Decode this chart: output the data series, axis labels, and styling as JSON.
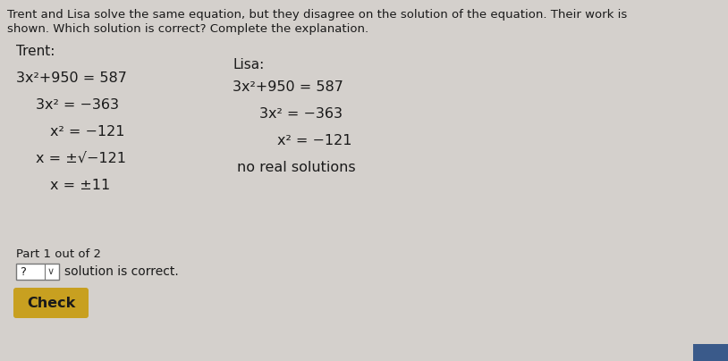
{
  "bg_color": "#d4d0cc",
  "header_line1": "Trent and Lisa solve the same equation, but they disagree on the solution of the equation. Their work is",
  "header_line2": "shown. Which solution is correct? Complete the explanation.",
  "trent_label": "Trent:",
  "lisa_label": "Lisa:",
  "trent_lines": [
    "3x²+950 = 587",
    "3x² = −363",
    "x² = −121",
    "x = ±√−121",
    "x = ±11"
  ],
  "trent_indents": [
    0,
    22,
    38,
    22,
    38
  ],
  "lisa_lines": [
    "3x²+950 = 587",
    "3x² = −363",
    "x² = −121",
    "no real solutions"
  ],
  "lisa_indents": [
    0,
    30,
    50,
    5
  ],
  "part_label": "Part 1 out of 2",
  "dropdown_text": "?",
  "answer_text": "solution is correct.",
  "check_button_text": "Check",
  "check_button_color": "#c8a020",
  "check_button_text_color": "#1a1a1a",
  "blue_rect_color": "#3a5a8a",
  "font_color": "#1a1a1a",
  "header_fontsize": 9.5,
  "body_fontsize": 11.5,
  "label_fontsize": 11.0,
  "part_fontsize": 9.5,
  "check_fontsize": 11.5
}
